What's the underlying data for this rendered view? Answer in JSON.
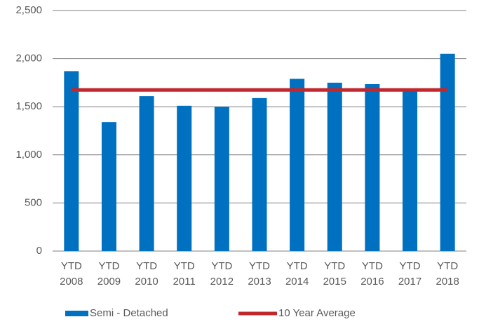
{
  "chart_data": {
    "type": "bar",
    "categories": [
      "YTD 2008",
      "YTD 2009",
      "YTD 2010",
      "YTD 2011",
      "YTD 2012",
      "YTD 2013",
      "YTD 2014",
      "YTD 2015",
      "YTD 2016",
      "YTD 2017",
      "YTD 2018"
    ],
    "series": [
      {
        "name": "Semi - Detached",
        "type": "bar",
        "color": "#0070c0",
        "values": [
          1870,
          1340,
          1610,
          1510,
          1500,
          1590,
          1790,
          1750,
          1735,
          1680,
          2050
        ]
      },
      {
        "name": "10 Year Average",
        "type": "line",
        "color": "#c0282e",
        "values": [
          1675,
          1675,
          1675,
          1675,
          1675,
          1675,
          1675,
          1675,
          1675,
          1675,
          1675
        ]
      }
    ],
    "ylim": [
      0,
      2500
    ],
    "yticks": [
      0,
      500,
      {
        "value": 1000,
        "label": "1,000"
      },
      {
        "value": 1500,
        "label": "1,500"
      },
      {
        "value": 2000,
        "label": "2,000"
      },
      {
        "value": 2500,
        "label": "2,500"
      }
    ],
    "grid": true,
    "legend": "bottom"
  }
}
